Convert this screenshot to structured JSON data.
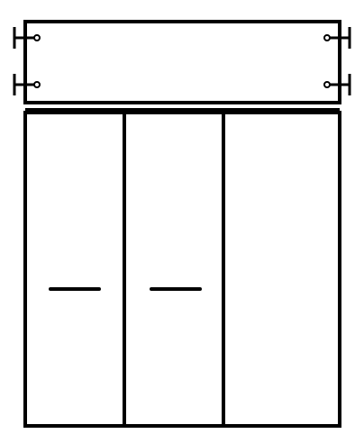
{
  "drawing": {
    "subject": "wardrobe-front-elevation",
    "line_color": "#000000",
    "background_color": "#ffffff",
    "top_panel": {
      "hooks_left": 2,
      "hooks_right": 2
    },
    "doors": [
      {
        "has_handle": true
      },
      {
        "has_handle": true
      },
      {
        "has_handle": false
      }
    ]
  }
}
